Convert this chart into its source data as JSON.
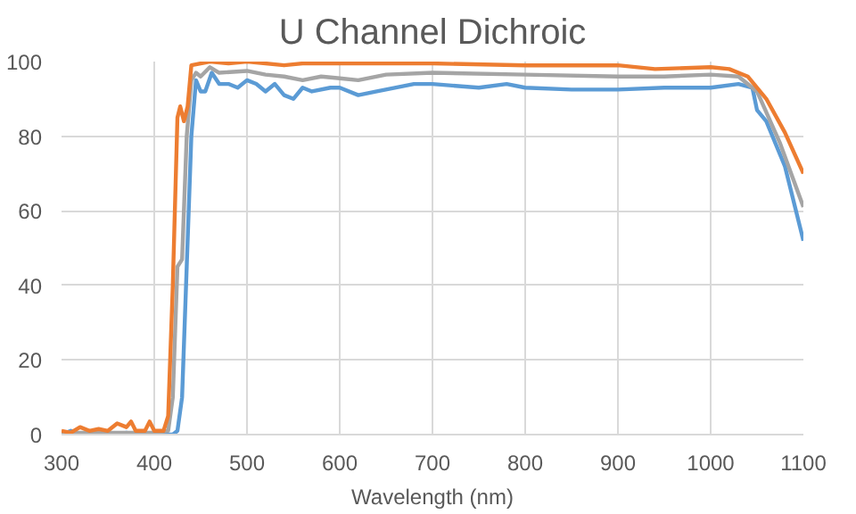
{
  "chart_data": {
    "type": "line",
    "title": "U Channel Dichroic",
    "xlabel": "Wavelength (nm)",
    "xlim": [
      300,
      1100
    ],
    "xticks": [
      300,
      400,
      500,
      600,
      700,
      800,
      900,
      1000,
      1100
    ],
    "ylim": [
      0,
      100
    ],
    "yticks": [
      0,
      20,
      40,
      60,
      80,
      100
    ],
    "grid": true,
    "marker": "none",
    "line_style": "solid",
    "series": [
      {
        "color": "#5b9bd5",
        "x": [
          300,
          310,
          320,
          360,
          370,
          380,
          420,
          425,
          430,
          435,
          440,
          445,
          450,
          455,
          462,
          470,
          480,
          490,
          500,
          510,
          520,
          530,
          540,
          550,
          560,
          570,
          590,
          600,
          620,
          640,
          680,
          700,
          750,
          780,
          800,
          850,
          900,
          950,
          1000,
          1030,
          1045,
          1050,
          1060,
          1080,
          1100
        ],
        "values": [
          0,
          1,
          0,
          0,
          0.5,
          0,
          0,
          1,
          10,
          45,
          80,
          95,
          92,
          92,
          97,
          94,
          94,
          93,
          95,
          94,
          92,
          94,
          91,
          90,
          93,
          92,
          93,
          93,
          91,
          92,
          94,
          94,
          93,
          94,
          93,
          92.5,
          92.5,
          93,
          93,
          94,
          93,
          87,
          84,
          72,
          52
        ]
      },
      {
        "color": "#a5a5a5",
        "x": [
          300,
          350,
          400,
          415,
          420,
          425,
          430,
          435,
          440,
          445,
          450,
          460,
          470,
          500,
          520,
          540,
          560,
          580,
          600,
          620,
          650,
          700,
          800,
          900,
          950,
          1000,
          1030,
          1050,
          1075,
          1100
        ],
        "values": [
          0.5,
          0.5,
          0.5,
          1,
          10,
          45,
          47,
          80,
          95,
          97,
          96,
          98.5,
          97,
          97.5,
          96.5,
          96,
          95,
          96,
          95.5,
          95,
          96.5,
          97,
          96.5,
          96,
          96,
          96.5,
          96,
          92,
          78,
          61
        ]
      },
      {
        "color": "#ed7d31",
        "x": [
          300,
          310,
          320,
          330,
          340,
          350,
          360,
          370,
          375,
          380,
          390,
          395,
          400,
          410,
          415,
          420,
          425,
          428,
          432,
          436,
          440,
          450,
          460,
          480,
          500,
          520,
          540,
          560,
          600,
          700,
          800,
          900,
          940,
          1000,
          1020,
          1040,
          1060,
          1080,
          1100
        ],
        "values": [
          1,
          0.5,
          2,
          1,
          1.5,
          1,
          3,
          2,
          3.5,
          1,
          1,
          3.5,
          1,
          1,
          5,
          40,
          85,
          88,
          84,
          88,
          99,
          99.5,
          100,
          99.5,
          100,
          99.5,
          99,
          99.5,
          99.5,
          99.5,
          99,
          99,
          98,
          98.5,
          98,
          96,
          90,
          81,
          70
        ]
      }
    ]
  }
}
